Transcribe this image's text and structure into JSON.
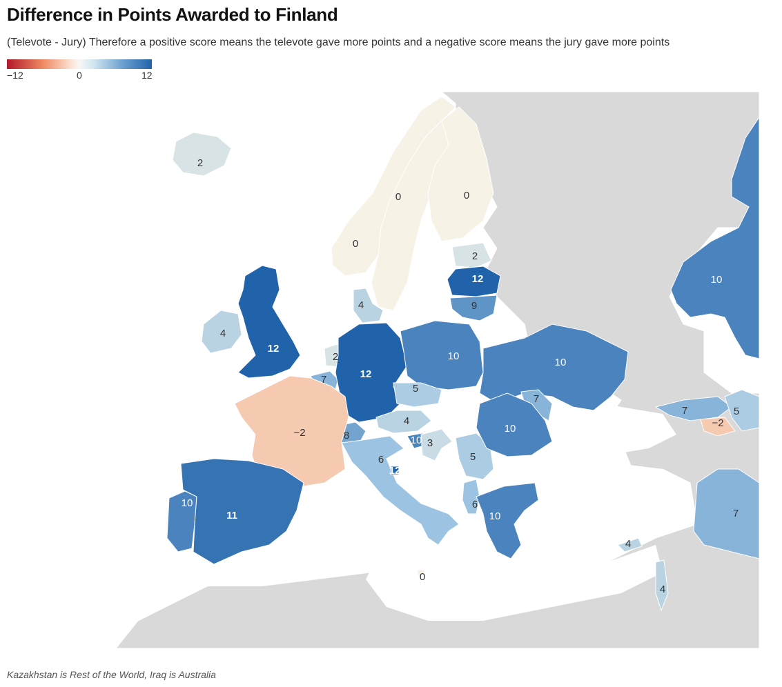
{
  "title": "Difference in Points Awarded to Finland",
  "subtitle": "(Televote - Jury) Therefore a positive score means the televote gave more points and a negative score means the jury gave more points",
  "legend": {
    "min_label": "−12",
    "mid_label": "0",
    "max_label": "12",
    "min": -12,
    "max": 12,
    "colors": {
      "neg_max": "#b2182b",
      "zero": "#f7f7f7",
      "pos_max": "#2163aa"
    }
  },
  "caption": "Kazakhstan is Rest of the World, Iraq is Australia",
  "colors": {
    "no_data": "#d9d9d9",
    "sea": "#ffffff",
    "border": "#ffffff"
  },
  "regions": [
    {
      "name": "Iceland",
      "value": 2,
      "label": "2"
    },
    {
      "name": "Norway",
      "value": 0,
      "label": "0"
    },
    {
      "name": "Sweden",
      "value": 0,
      "label": "0"
    },
    {
      "name": "Finland",
      "value": 0,
      "label": "0"
    },
    {
      "name": "Estonia",
      "value": 2,
      "label": "2"
    },
    {
      "name": "Latvia",
      "value": 12,
      "label": "12"
    },
    {
      "name": "Lithuania",
      "value": 9,
      "label": "9"
    },
    {
      "name": "Denmark",
      "value": 4,
      "label": "4"
    },
    {
      "name": "Ireland",
      "value": 4,
      "label": "4"
    },
    {
      "name": "United Kingdom",
      "value": 12,
      "label": "12"
    },
    {
      "name": "Netherlands",
      "value": 2,
      "label": "2"
    },
    {
      "name": "Belgium",
      "value": 7,
      "label": "7"
    },
    {
      "name": "Germany",
      "value": 12,
      "label": "12"
    },
    {
      "name": "Poland",
      "value": 10,
      "label": "10"
    },
    {
      "name": "Czechia",
      "value": 5,
      "label": "5"
    },
    {
      "name": "Austria",
      "value": 4,
      "label": "4"
    },
    {
      "name": "Switzerland",
      "value": 8,
      "label": "8"
    },
    {
      "name": "Slovenia",
      "value": 10,
      "label": "10"
    },
    {
      "name": "Croatia",
      "value": 3,
      "label": "3"
    },
    {
      "name": "Serbia",
      "value": 5,
      "label": "5"
    },
    {
      "name": "France",
      "value": -2,
      "label": "−2"
    },
    {
      "name": "Italy",
      "value": 6,
      "label": "6"
    },
    {
      "name": "San Marino",
      "value": 12,
      "label": "12"
    },
    {
      "name": "Ukraine",
      "value": 10,
      "label": "10"
    },
    {
      "name": "Moldova",
      "value": 7,
      "label": "7"
    },
    {
      "name": "Romania",
      "value": 10,
      "label": "10"
    },
    {
      "name": "Albania",
      "value": 6,
      "label": "6"
    },
    {
      "name": "Greece",
      "value": 10,
      "label": "10"
    },
    {
      "name": "Portugal",
      "value": 10,
      "label": "10"
    },
    {
      "name": "Spain",
      "value": 11,
      "label": "11"
    },
    {
      "name": "Malta",
      "value": 0,
      "label": "0"
    },
    {
      "name": "Cyprus",
      "value": 4,
      "label": "4"
    },
    {
      "name": "Israel",
      "value": 4,
      "label": "4"
    },
    {
      "name": "Georgia",
      "value": 7,
      "label": "7"
    },
    {
      "name": "Armenia",
      "value": -2,
      "label": "−2"
    },
    {
      "name": "Azerbaijan",
      "value": 5,
      "label": "5"
    },
    {
      "name": "Kazakhstan",
      "value": 10,
      "label": "10"
    },
    {
      "name": "Iraq",
      "value": 7,
      "label": "7"
    }
  ]
}
